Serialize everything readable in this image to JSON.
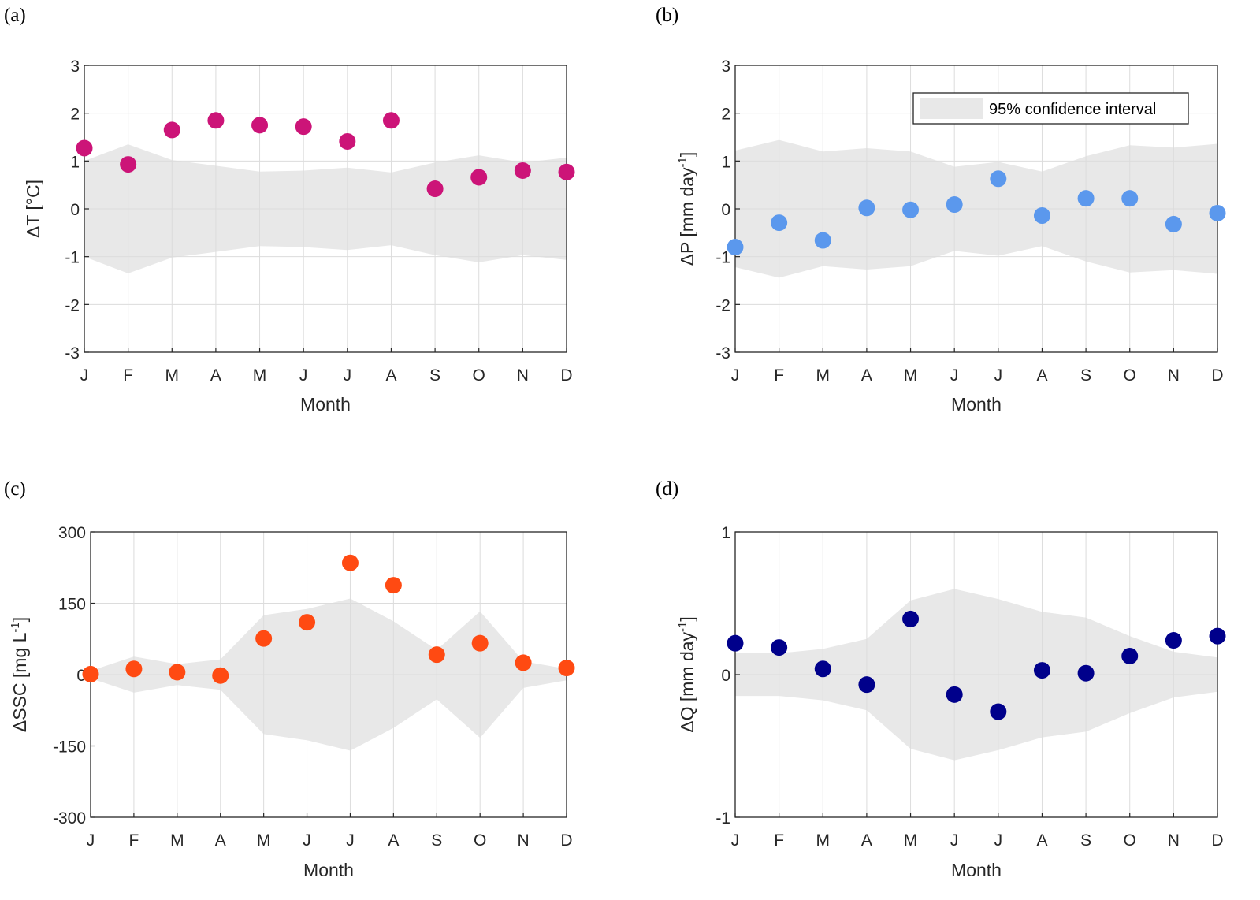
{
  "chart_data": [
    {
      "type": "scatter",
      "panel_label": "(a)",
      "title": "",
      "xlabel": "Month",
      "ylabel": "ΔT [°C]",
      "categories": [
        "J",
        "F",
        "M",
        "A",
        "M",
        "J",
        "J",
        "A",
        "S",
        "O",
        "N",
        "D"
      ],
      "ylim": [
        -3,
        3
      ],
      "yticks": [
        -3,
        -2,
        -1,
        0,
        1,
        2,
        3
      ],
      "ytick_labels": [
        "-3",
        "-2",
        "-1",
        "0",
        "1",
        "2",
        "3"
      ],
      "grid": true,
      "marker_color": "#cc1478",
      "values": [
        1.27,
        0.93,
        1.65,
        1.85,
        1.75,
        1.72,
        1.41,
        1.85,
        0.42,
        0.66,
        0.8,
        0.77
      ],
      "ci_upper": [
        1.0,
        1.35,
        1.02,
        0.9,
        0.78,
        0.8,
        0.86,
        0.76,
        0.97,
        1.12,
        0.97,
        1.07
      ],
      "ci_lower": [
        -1.0,
        -1.35,
        -1.02,
        -0.9,
        -0.78,
        -0.8,
        -0.86,
        -0.76,
        -0.97,
        -1.12,
        -0.97,
        -1.07
      ]
    },
    {
      "type": "scatter",
      "panel_label": "(b)",
      "title": "",
      "xlabel": "Month",
      "ylabel": "ΔP [mm day",
      "ylabel_sup": "-1",
      "ylabel_tail": "]",
      "categories": [
        "J",
        "F",
        "M",
        "A",
        "M",
        "J",
        "J",
        "A",
        "S",
        "O",
        "N",
        "D"
      ],
      "ylim": [
        -3,
        3
      ],
      "yticks": [
        -3,
        -2,
        -1,
        0,
        1,
        2,
        3
      ],
      "ytick_labels": [
        "-3",
        "-2",
        "-1",
        "0",
        "1",
        "2",
        "3"
      ],
      "grid": true,
      "marker_color": "#5b98ed",
      "values": [
        -0.8,
        -0.29,
        -0.66,
        0.02,
        -0.02,
        0.09,
        0.63,
        -0.14,
        0.22,
        0.22,
        -0.32,
        -0.09
      ],
      "ci_upper": [
        1.22,
        1.44,
        1.2,
        1.27,
        1.2,
        0.88,
        0.98,
        0.78,
        1.1,
        1.33,
        1.28,
        1.36
      ],
      "ci_lower": [
        -1.22,
        -1.44,
        -1.2,
        -1.27,
        -1.2,
        -0.88,
        -0.98,
        -0.78,
        -1.1,
        -1.33,
        -1.28,
        -1.36
      ],
      "legend": {
        "label": "95% confidence interval",
        "placement": "top-right"
      }
    },
    {
      "type": "scatter",
      "panel_label": "(c)",
      "title": "",
      "xlabel": "Month",
      "ylabel": "ΔSSC [mg L",
      "ylabel_sup": "-1",
      "ylabel_tail": "]",
      "categories": [
        "J",
        "F",
        "M",
        "A",
        "M",
        "J",
        "J",
        "A",
        "S",
        "O",
        "N",
        "D"
      ],
      "ylim": [
        -300,
        300
      ],
      "yticks": [
        -300,
        -150,
        0,
        150,
        300
      ],
      "ytick_labels": [
        "-300",
        "-150",
        "0",
        "150",
        "300"
      ],
      "grid": true,
      "marker_color": "#ff4a12",
      "values": [
        1,
        12,
        5,
        -2,
        76,
        110,
        235,
        188,
        42,
        66,
        25,
        14
      ],
      "ci_upper": [
        8,
        38,
        22,
        32,
        125,
        138,
        160,
        112,
        52,
        133,
        28,
        12
      ],
      "ci_lower": [
        -8,
        -38,
        -22,
        -32,
        -125,
        -138,
        -160,
        -112,
        -52,
        -133,
        -28,
        -12
      ]
    },
    {
      "type": "scatter",
      "panel_label": "(d)",
      "title": "",
      "xlabel": "Month",
      "ylabel": "ΔQ [mm day",
      "ylabel_sup": "-1",
      "ylabel_tail": "]",
      "categories": [
        "J",
        "F",
        "M",
        "A",
        "M",
        "J",
        "J",
        "A",
        "S",
        "O",
        "N",
        "D"
      ],
      "ylim": [
        -1,
        1
      ],
      "yticks": [
        -1,
        0,
        1
      ],
      "ytick_labels": [
        "-1",
        "0",
        "1"
      ],
      "grid": true,
      "marker_color": "#00008b",
      "values": [
        0.22,
        0.19,
        0.04,
        -0.07,
        0.39,
        -0.14,
        -0.26,
        0.03,
        0.01,
        0.13,
        0.24,
        0.27
      ],
      "ci_upper": [
        0.15,
        0.15,
        0.18,
        0.25,
        0.52,
        0.6,
        0.53,
        0.44,
        0.4,
        0.27,
        0.16,
        0.12
      ],
      "ci_lower": [
        -0.15,
        -0.15,
        -0.18,
        -0.25,
        -0.52,
        -0.6,
        -0.53,
        -0.44,
        -0.4,
        -0.27,
        -0.16,
        -0.12
      ]
    }
  ]
}
